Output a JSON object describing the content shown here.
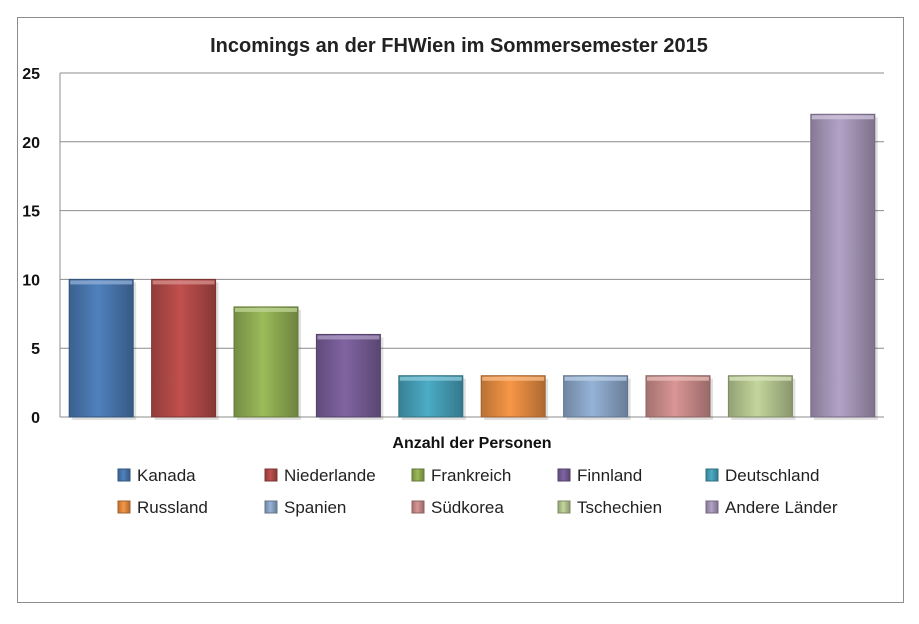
{
  "chart_data": {
    "type": "bar",
    "title": "Incomings an der FHWien im Sommersemester 2015",
    "xlabel": "Anzahl der Personen",
    "ylabel": "",
    "ylim": [
      0,
      25
    ],
    "yticks": [
      0,
      5,
      10,
      15,
      20,
      25
    ],
    "grid": true,
    "legend_position": "bottom",
    "series": [
      {
        "name": "Kanada",
        "value": 10,
        "color": "#4f81bd"
      },
      {
        "name": "Niederlande",
        "value": 10,
        "color": "#c0504d"
      },
      {
        "name": "Frankreich",
        "value": 8,
        "color": "#9bbb59"
      },
      {
        "name": "Finnland",
        "value": 6,
        "color": "#8064a2"
      },
      {
        "name": "Deutschland",
        "value": 3,
        "color": "#4bacc6"
      },
      {
        "name": "Russland",
        "value": 3,
        "color": "#f79646"
      },
      {
        "name": "Spanien",
        "value": 3,
        "color": "#95b3d7"
      },
      {
        "name": "Südkorea",
        "value": 3,
        "color": "#d99694"
      },
      {
        "name": "Tschechien",
        "value": 3,
        "color": "#c3d69b"
      },
      {
        "name": "Andere Länder",
        "value": 22,
        "color": "#b3a2c7"
      }
    ]
  }
}
